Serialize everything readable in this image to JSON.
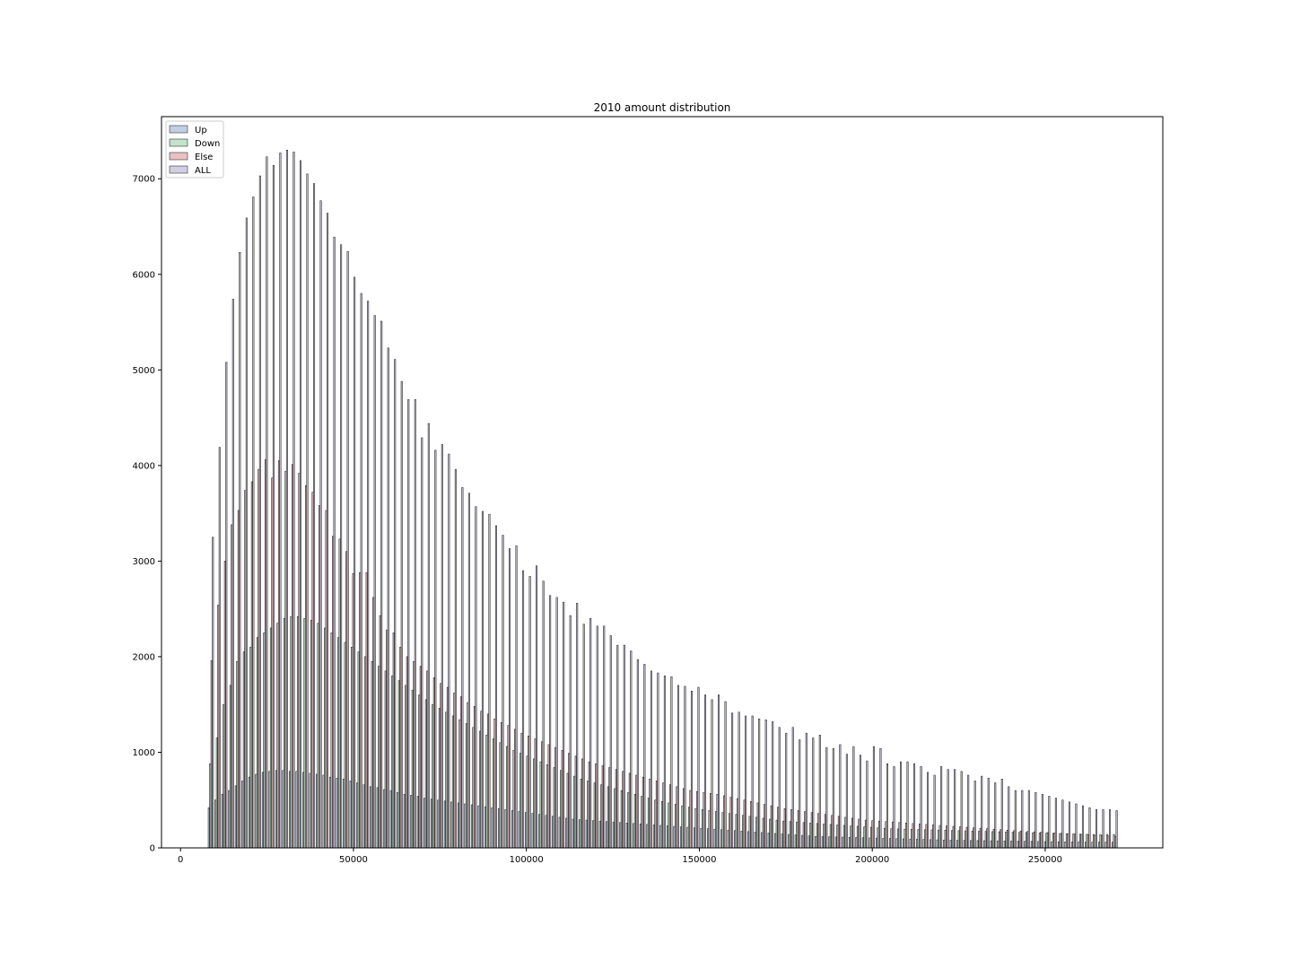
{
  "chart_data": {
    "type": "bar",
    "title": "2010 amount distribution",
    "xlabel": "",
    "ylabel": "",
    "xlim": [
      -5500,
      284000
    ],
    "ylim": [
      0,
      7650
    ],
    "x_ticks": [
      0,
      50000,
      100000,
      150000,
      200000,
      250000
    ],
    "y_ticks": [
      0,
      1000,
      2000,
      3000,
      4000,
      5000,
      6000,
      7000
    ],
    "bin_start": 8000,
    "bin_width": 1950,
    "num_bins": 135,
    "grid": false,
    "legend": "top-left",
    "series": [
      {
        "name": "Up",
        "color": "#4c72b0",
        "values": [
          420,
          500,
          560,
          600,
          650,
          700,
          740,
          770,
          790,
          800,
          810,
          810,
          800,
          800,
          790,
          780,
          770,
          760,
          740,
          730,
          720,
          700,
          680,
          660,
          640,
          630,
          610,
          600,
          580,
          560,
          550,
          540,
          520,
          510,
          500,
          490,
          480,
          470,
          460,
          450,
          440,
          430,
          420,
          410,
          400,
          390,
          380,
          370,
          360,
          350,
          340,
          330,
          320,
          310,
          300,
          295,
          290,
          285,
          280,
          275,
          270,
          265,
          260,
          255,
          250,
          245,
          240,
          235,
          230,
          225,
          220,
          215,
          210,
          205,
          200,
          195,
          190,
          185,
          180,
          175,
          170,
          165,
          160,
          155,
          150,
          145,
          140,
          135,
          130,
          125,
          120,
          118,
          116,
          114,
          112,
          110,
          108,
          106,
          104,
          102,
          100,
          98,
          96,
          94,
          92,
          90,
          88,
          86,
          84,
          82,
          80,
          79,
          78,
          77,
          76,
          75,
          74,
          73,
          72,
          71,
          70,
          69,
          68,
          67,
          66,
          65,
          64,
          63,
          62,
          61,
          60,
          60,
          60,
          60,
          60
        ]
      },
      {
        "name": "Down",
        "color": "#55a868",
        "values": [
          880,
          1150,
          1500,
          1700,
          1950,
          2050,
          2100,
          2200,
          2250,
          2300,
          2350,
          2400,
          2420,
          2420,
          2400,
          2380,
          2350,
          2300,
          2250,
          2200,
          2150,
          2100,
          2050,
          2000,
          1950,
          1900,
          1850,
          1800,
          1750,
          1700,
          1650,
          1600,
          1550,
          1500,
          1460,
          1420,
          1380,
          1340,
          1300,
          1260,
          1220,
          1180,
          1140,
          1100,
          1060,
          1020,
          990,
          960,
          930,
          900,
          870,
          840,
          810,
          780,
          750,
          720,
          700,
          680,
          660,
          640,
          620,
          600,
          580,
          560,
          540,
          520,
          500,
          485,
          470,
          455,
          440,
          425,
          410,
          400,
          390,
          380,
          370,
          360,
          350,
          340,
          330,
          320,
          310,
          300,
          290,
          280,
          275,
          270,
          265,
          260,
          255,
          250,
          245,
          240,
          235,
          230,
          225,
          220,
          215,
          210,
          205,
          200,
          198,
          196,
          194,
          192,
          190,
          188,
          186,
          184,
          182,
          180,
          178,
          176,
          174,
          172,
          170,
          168,
          166,
          164,
          162,
          160,
          158,
          156,
          154,
          152,
          150,
          148,
          146,
          144,
          142,
          140,
          140,
          140,
          140
        ]
      },
      {
        "name": "Else",
        "color": "#c44e52",
        "values": [
          1960,
          2540,
          3000,
          3380,
          3530,
          3740,
          3830,
          3960,
          4060,
          3870,
          4050,
          3940,
          4010,
          3920,
          3790,
          3720,
          3580,
          3530,
          3260,
          3230,
          3100,
          2870,
          2880,
          2880,
          2620,
          2430,
          2280,
          2250,
          2100,
          2000,
          1950,
          1900,
          1850,
          1780,
          1720,
          1680,
          1620,
          1580,
          1520,
          1480,
          1430,
          1400,
          1350,
          1310,
          1280,
          1240,
          1200,
          1170,
          1140,
          1110,
          1080,
          1050,
          1020,
          990,
          960,
          930,
          900,
          880,
          860,
          840,
          820,
          800,
          780,
          760,
          740,
          720,
          700,
          680,
          660,
          640,
          620,
          600,
          590,
          580,
          570,
          560,
          545,
          530,
          515,
          500,
          485,
          470,
          455,
          440,
          425,
          410,
          400,
          390,
          380,
          370,
          360,
          350,
          340,
          330,
          320,
          310,
          300,
          290,
          285,
          280,
          275,
          270,
          265,
          260,
          255,
          250,
          245,
          240,
          235,
          230,
          225,
          220,
          215,
          210,
          205,
          200,
          195,
          190,
          185,
          180,
          176,
          172,
          168,
          164,
          160,
          156,
          152,
          148,
          144,
          140,
          136,
          132,
          128,
          124,
          120
        ]
      },
      {
        "name": "ALL",
        "color": "#8172b2",
        "values": [
          3250,
          4190,
          5080,
          5740,
          6230,
          6590,
          6810,
          7030,
          7230,
          7140,
          7270,
          7300,
          7280,
          7190,
          7050,
          6950,
          6770,
          6640,
          6390,
          6310,
          6240,
          5970,
          5800,
          5720,
          5570,
          5510,
          5230,
          5110,
          4880,
          4690,
          4690,
          4290,
          4440,
          4160,
          4220,
          4120,
          3960,
          3770,
          3710,
          3570,
          3520,
          3490,
          3370,
          3270,
          3130,
          3160,
          2900,
          2840,
          2950,
          2790,
          2640,
          2620,
          2570,
          2430,
          2560,
          2340,
          2400,
          2320,
          2320,
          2220,
          2120,
          2120,
          2060,
          1970,
          1920,
          1850,
          1830,
          1800,
          1790,
          1700,
          1690,
          1640,
          1680,
          1600,
          1550,
          1600,
          1530,
          1410,
          1420,
          1380,
          1380,
          1350,
          1340,
          1320,
          1260,
          1200,
          1260,
          1130,
          1200,
          1150,
          1180,
          1050,
          1040,
          1080,
          980,
          1060,
          970,
          910,
          1060,
          1040,
          880,
          850,
          900,
          900,
          880,
          850,
          790,
          760,
          850,
          820,
          820,
          800,
          760,
          700,
          750,
          730,
          680,
          720,
          640,
          600,
          600,
          600,
          580,
          560,
          540,
          520,
          500,
          480,
          460,
          440,
          420,
          400,
          400,
          400,
          390
        ]
      }
    ]
  }
}
